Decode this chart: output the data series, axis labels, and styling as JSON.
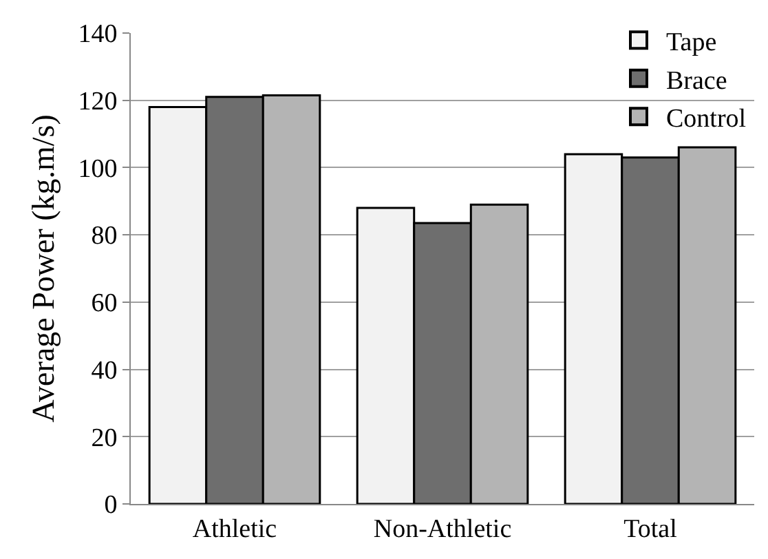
{
  "chart_data": {
    "type": "bar",
    "ylabel": "Average Power (kg.m/s)",
    "categories": [
      "Athletic",
      "Non-Athletic",
      "Total"
    ],
    "series": [
      {
        "name": "Tape",
        "color": "#f2f2f2",
        "values": [
          118,
          88,
          104
        ]
      },
      {
        "name": "Brace",
        "color": "#6e6e6e",
        "values": [
          121,
          83.5,
          103
        ]
      },
      {
        "name": "Control",
        "color": "#b4b4b4",
        "values": [
          121.5,
          89,
          106
        ]
      }
    ],
    "ylim": [
      0,
      140
    ],
    "yticks": [
      0,
      20,
      40,
      60,
      80,
      100,
      120,
      140
    ],
    "grid": "y",
    "legend": "top right"
  }
}
